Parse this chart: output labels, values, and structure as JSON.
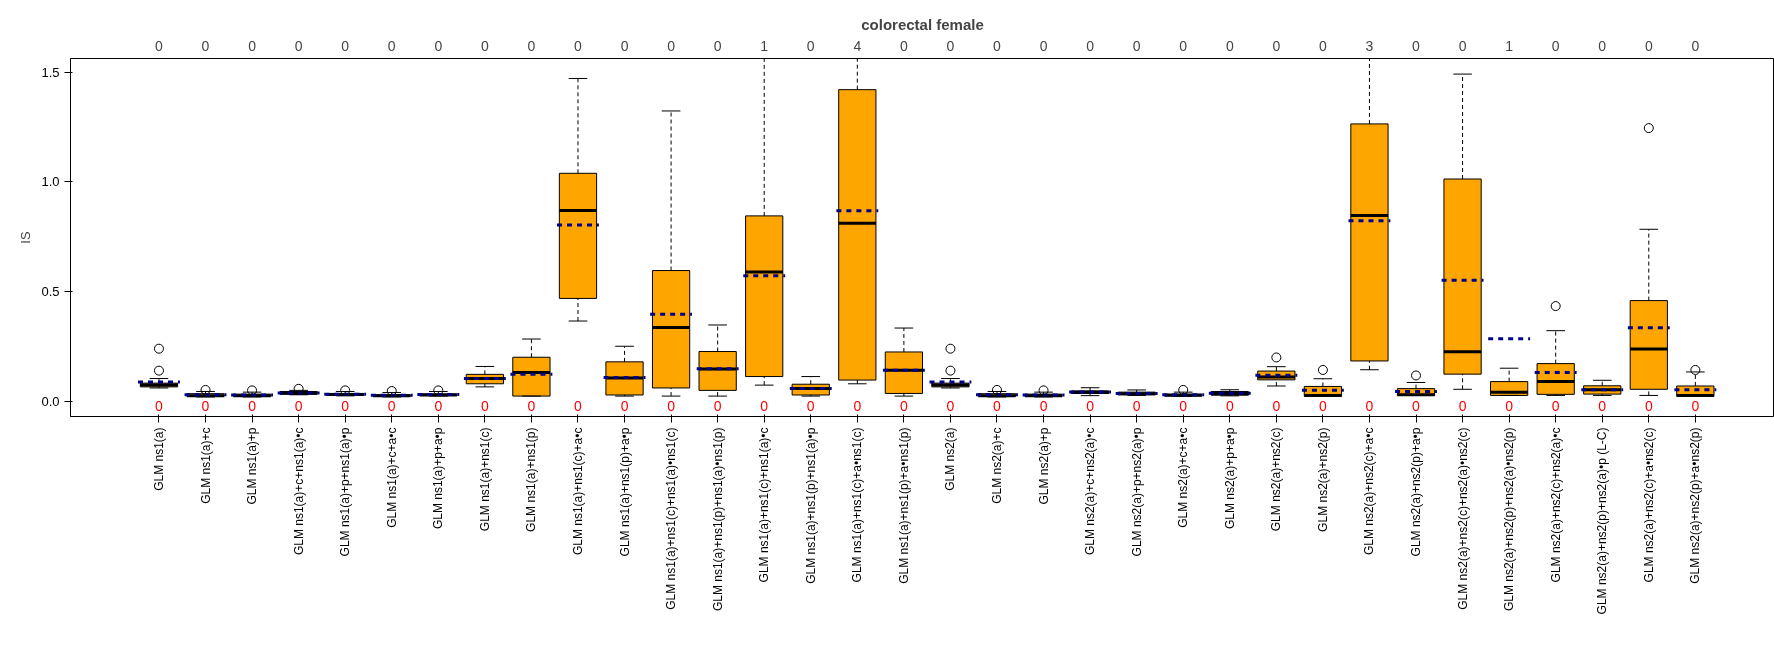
{
  "chart_data": {
    "type": "box",
    "title": "colorectal female",
    "ylabel": "IS",
    "categories": [
      "GLM ns1(a)",
      "GLM ns1(a)+c",
      "GLM ns1(a)+p",
      "GLM ns1(a)+c+ns1(a)•c",
      "GLM ns1(a)+p+ns1(a)•p",
      "GLM ns1(a)+c+a•c",
      "GLM ns1(a)+p+a•p",
      "GLM ns1(a)+ns1(c)",
      "GLM ns1(a)+ns1(p)",
      "GLM ns1(a)+ns1(c)+a•c",
      "GLM ns1(a)+ns1(p)+a•p",
      "GLM ns1(a)+ns1(c)+ns1(a)•ns1(c)",
      "GLM ns1(a)+ns1(p)+ns1(a)•ns1(p)",
      "GLM ns1(a)+ns1(c)+ns1(a)•c",
      "GLM ns1(a)+ns1(p)+ns1(a)•p",
      "GLM ns1(a)+ns1(c)+a•ns1(c)",
      "GLM ns1(a)+ns1(p)+a•ns1(p)",
      "GLM ns2(a)",
      "GLM ns2(a)+c",
      "GLM ns2(a)+p",
      "GLM ns2(a)+c+ns2(a)•c",
      "GLM ns2(a)+p+ns2(a)•p",
      "GLM ns2(a)+c+a•c",
      "GLM ns2(a)+p+a•p",
      "GLM ns2(a)+ns2(c)",
      "GLM ns2(a)+ns2(p)",
      "GLM ns2(a)+ns2(c)+a•c",
      "GLM ns2(a)+ns2(p)+a•p",
      "GLM ns2(a)+ns2(c)+ns2(a)•ns2(c)",
      "GLM ns2(a)+ns2(p)+ns2(a)•ns2(p)",
      "GLM ns2(a)+ns2(c)+ns2(a)•c",
      "GLM ns2(a)+ns2(p)+ns2(a)•p (L-C)",
      "GLM ns2(a)+ns2(c)+a•ns2(c)",
      "GLM ns2(a)+ns2(p)+a•ns2(p)"
    ],
    "ylim": [
      -0.069,
      1.562
    ],
    "yticks": [
      {
        "value": 0,
        "label": "0.0"
      },
      {
        "value": 0.5,
        "label": "0.5"
      },
      {
        "value": 1,
        "label": "1.0"
      },
      {
        "value": 1.5,
        "label": "1.5"
      }
    ],
    "grid": false,
    "series": [
      {
        "color": "#ffa500",
        "boxes": [
          {
            "low": 0.061,
            "q1": 0.066,
            "median": 0.074,
            "q3": 0.083,
            "high": 0.104,
            "mean": 0.088,
            "outliers": [
              0.14,
              0.24
            ]
          },
          {
            "low": 0.02,
            "q1": 0.023,
            "median": 0.026,
            "q3": 0.035,
            "high": 0.045,
            "mean": 0.03,
            "outliers": [
              0.052
            ]
          },
          {
            "low": 0.02,
            "q1": 0.023,
            "median": 0.026,
            "q3": 0.033,
            "high": 0.042,
            "mean": 0.029,
            "outliers": [
              0.05
            ]
          },
          {
            "low": 0.03,
            "q1": 0.033,
            "median": 0.037,
            "q3": 0.045,
            "high": 0.05,
            "mean": 0.038,
            "outliers": [
              0.057
            ]
          },
          {
            "low": 0.025,
            "q1": 0.028,
            "median": 0.031,
            "q3": 0.036,
            "high": 0.045,
            "mean": 0.032,
            "outliers": [
              0.05
            ]
          },
          {
            "low": 0.02,
            "q1": 0.023,
            "median": 0.025,
            "q3": 0.03,
            "high": 0.04,
            "mean": 0.028,
            "outliers": [
              0.047
            ]
          },
          {
            "low": 0.024,
            "q1": 0.027,
            "median": 0.029,
            "q3": 0.034,
            "high": 0.045,
            "mean": 0.031,
            "outliers": [
              0.05
            ]
          },
          {
            "low": 0.066,
            "q1": 0.08,
            "median": 0.104,
            "q3": 0.123,
            "high": 0.159,
            "mean": 0.104
          },
          {
            "low": 0.024,
            "q1": 0.024,
            "median": 0.132,
            "q3": 0.201,
            "high": 0.284,
            "mean": 0.123
          },
          {
            "low": 0.366,
            "q1": 0.469,
            "median": 0.87,
            "q3": 1.039,
            "high": 1.471,
            "mean": 0.804
          },
          {
            "low": 0.024,
            "q1": 0.029,
            "median": 0.106,
            "q3": 0.18,
            "high": 0.251,
            "mean": 0.109
          },
          {
            "low": 0.024,
            "q1": 0.061,
            "median": 0.336,
            "q3": 0.596,
            "high": 1.323,
            "mean": 0.397
          },
          {
            "low": 0.024,
            "q1": 0.05,
            "median": 0.147,
            "q3": 0.227,
            "high": 0.348,
            "mean": 0.149
          },
          {
            "low": 0.074,
            "q1": 0.113,
            "median": 0.589,
            "q3": 0.845,
            "high": 1.562,
            "mean": 0.572
          },
          {
            "low": 0.024,
            "q1": 0.029,
            "median": 0.059,
            "q3": 0.078,
            "high": 0.113,
            "mean": 0.059
          },
          {
            "low": 0.08,
            "q1": 0.097,
            "median": 0.811,
            "q3": 1.42,
            "high": 1.562,
            "mean": 0.868
          },
          {
            "low": 0.024,
            "q1": 0.036,
            "median": 0.142,
            "q3": 0.225,
            "high": 0.334,
            "mean": 0.142
          },
          {
            "low": 0.061,
            "q1": 0.066,
            "median": 0.074,
            "q3": 0.083,
            "high": 0.104,
            "mean": 0.088,
            "outliers": [
              0.14,
              0.24
            ]
          },
          {
            "low": 0.02,
            "q1": 0.023,
            "median": 0.026,
            "q3": 0.035,
            "high": 0.045,
            "mean": 0.03,
            "outliers": [
              0.052
            ]
          },
          {
            "low": 0.02,
            "q1": 0.023,
            "median": 0.026,
            "q3": 0.033,
            "high": 0.042,
            "mean": 0.029,
            "outliers": [
              0.05
            ]
          },
          {
            "low": 0.026,
            "q1": 0.036,
            "median": 0.04,
            "q3": 0.048,
            "high": 0.062,
            "mean": 0.043
          },
          {
            "low": 0.027,
            "q1": 0.03,
            "median": 0.035,
            "q3": 0.042,
            "high": 0.052,
            "mean": 0.036
          },
          {
            "low": 0.023,
            "q1": 0.025,
            "median": 0.028,
            "q3": 0.033,
            "high": 0.042,
            "mean": 0.03,
            "outliers": [
              0.052
            ]
          },
          {
            "low": 0.025,
            "q1": 0.028,
            "median": 0.036,
            "q3": 0.045,
            "high": 0.053,
            "mean": 0.037
          },
          {
            "low": 0.07,
            "q1": 0.098,
            "median": 0.111,
            "q3": 0.138,
            "high": 0.158,
            "mean": 0.119,
            "outliers": [
              0.2
            ]
          },
          {
            "low": 0.023,
            "q1": 0.023,
            "median": 0.027,
            "q3": 0.068,
            "high": 0.103,
            "mean": 0.051,
            "outliers": [
              0.143
            ]
          },
          {
            "low": 0.144,
            "q1": 0.184,
            "median": 0.847,
            "q3": 1.264,
            "high": 1.562,
            "mean": 0.823
          },
          {
            "low": 0.027,
            "q1": 0.027,
            "median": 0.03,
            "q3": 0.058,
            "high": 0.086,
            "mean": 0.045,
            "outliers": [
              0.118
            ]
          },
          {
            "low": 0.055,
            "q1": 0.124,
            "median": 0.226,
            "q3": 1.013,
            "high": 1.491,
            "mean": 0.552
          },
          {
            "low": 0.027,
            "q1": 0.027,
            "median": 0.041,
            "q3": 0.09,
            "high": 0.151,
            "mean": 0.285
          },
          {
            "low": 0.027,
            "q1": 0.032,
            "median": 0.09,
            "q3": 0.172,
            "high": 0.322,
            "mean": 0.131,
            "outliers": [
              0.434
            ]
          },
          {
            "low": 0.027,
            "q1": 0.033,
            "median": 0.053,
            "q3": 0.071,
            "high": 0.096,
            "mean": 0.053
          },
          {
            "low": 0.027,
            "q1": 0.055,
            "median": 0.239,
            "q3": 0.459,
            "high": 0.784,
            "mean": 0.335,
            "outliers": [
              1.245
            ]
          },
          {
            "low": 0.023,
            "q1": 0.023,
            "median": 0.027,
            "q3": 0.07,
            "high": 0.134,
            "mean": 0.053,
            "outliers": [
              0.143
            ]
          }
        ]
      }
    ],
    "annotations": [
      "0",
      "0",
      "0",
      "0",
      "0",
      "0",
      "0",
      "0",
      "0",
      "0",
      "0",
      "0",
      "0",
      "1",
      "0",
      "4",
      "0",
      "0",
      "0",
      "0",
      "0",
      "0",
      "0",
      "0",
      "0",
      "0",
      "3",
      "0",
      "0",
      "1",
      "0",
      "0",
      "0",
      "0",
      "0",
      "0",
      "0",
      "0",
      "0",
      "0",
      "0",
      "0",
      "0",
      "0",
      "0",
      "0",
      "0",
      "0",
      "0",
      "0",
      "0",
      "0",
      "0",
      "0",
      "0",
      "0",
      "0",
      "0",
      "0",
      "0",
      "0",
      "0",
      "0",
      "0",
      "0",
      "0",
      "0",
      "0"
    ]
  }
}
